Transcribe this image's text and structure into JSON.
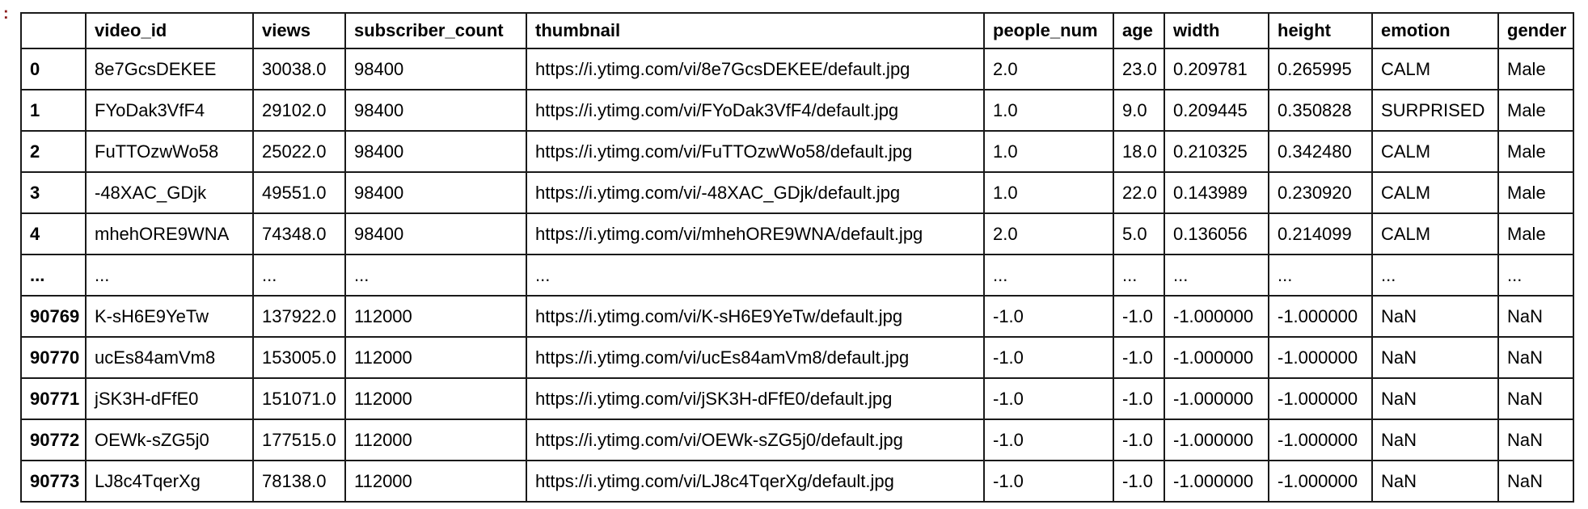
{
  "prompt_marker": ":",
  "columns": [
    "",
    "video_id",
    "views",
    "subscriber_count",
    "thumbnail",
    "people_num",
    "age",
    "width",
    "height",
    "emotion",
    "gender"
  ],
  "rows": [
    [
      "0",
      "8e7GcsDEKEE",
      "30038.0",
      "98400",
      "https://i.ytimg.com/vi/8e7GcsDEKEE/default.jpg",
      "2.0",
      "23.0",
      "0.209781",
      "0.265995",
      "CALM",
      "Male"
    ],
    [
      "1",
      "FYoDak3VfF4",
      "29102.0",
      "98400",
      "https://i.ytimg.com/vi/FYoDak3VfF4/default.jpg",
      "1.0",
      "9.0",
      "0.209445",
      "0.350828",
      "SURPRISED",
      "Male"
    ],
    [
      "2",
      "FuTTOzwWo58",
      "25022.0",
      "98400",
      "https://i.ytimg.com/vi/FuTTOzwWo58/default.jpg",
      "1.0",
      "18.0",
      "0.210325",
      "0.342480",
      "CALM",
      "Male"
    ],
    [
      "3",
      "-48XAC_GDjk",
      "49551.0",
      "98400",
      "https://i.ytimg.com/vi/-48XAC_GDjk/default.jpg",
      "1.0",
      "22.0",
      "0.143989",
      "0.230920",
      "CALM",
      "Male"
    ],
    [
      "4",
      "mhehORE9WNA",
      "74348.0",
      "98400",
      "https://i.ytimg.com/vi/mhehORE9WNA/default.jpg",
      "2.0",
      "5.0",
      "0.136056",
      "0.214099",
      "CALM",
      "Male"
    ],
    [
      "...",
      "...",
      "...",
      "...",
      "...",
      "...",
      "...",
      "...",
      "...",
      "...",
      "..."
    ],
    [
      "90769",
      "K-sH6E9YeTw",
      "137922.0",
      "112000",
      "https://i.ytimg.com/vi/K-sH6E9YeTw/default.jpg",
      "-1.0",
      "-1.0",
      "-1.000000",
      "-1.000000",
      "NaN",
      "NaN"
    ],
    [
      "90770",
      "ucEs84amVm8",
      "153005.0",
      "112000",
      "https://i.ytimg.com/vi/ucEs84amVm8/default.jpg",
      "-1.0",
      "-1.0",
      "-1.000000",
      "-1.000000",
      "NaN",
      "NaN"
    ],
    [
      "90771",
      "jSK3H-dFfE0",
      "151071.0",
      "112000",
      "https://i.ytimg.com/vi/jSK3H-dFfE0/default.jpg",
      "-1.0",
      "-1.0",
      "-1.000000",
      "-1.000000",
      "NaN",
      "NaN"
    ],
    [
      "90772",
      "OEWk-sZG5j0",
      "177515.0",
      "112000",
      "https://i.ytimg.com/vi/OEWk-sZG5j0/default.jpg",
      "-1.0",
      "-1.0",
      "-1.000000",
      "-1.000000",
      "NaN",
      "NaN"
    ],
    [
      "90773",
      "LJ8c4TqerXg",
      "78138.0",
      "112000",
      "https://i.ytimg.com/vi/LJ8c4TqerXg/default.jpg",
      "-1.0",
      "-1.0",
      "-1.000000",
      "-1.000000",
      "NaN",
      "NaN"
    ]
  ]
}
